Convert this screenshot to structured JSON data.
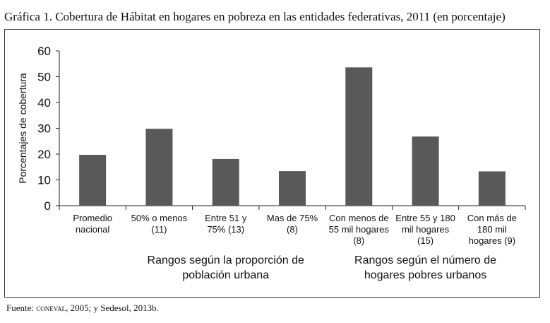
{
  "title": "Gráfica 1. Cobertura de Hábitat en hogares en pobreza en las entidades federativas, 2011 (en porcentaje)",
  "source": {
    "prefix": "Fuente: ",
    "org": "coneval",
    "rest": ", 2005; y Sedesol, 2013b."
  },
  "chart_data": {
    "type": "bar",
    "categories": [
      [
        "Promedio",
        "nacional"
      ],
      [
        "50% o menos",
        "(11)"
      ],
      [
        "Entre 51 y",
        "75% (13)"
      ],
      [
        "Mas de 75%",
        "(8)"
      ],
      [
        "Con menos de",
        "55 mil hogares",
        "(8)"
      ],
      [
        "Entre 55 y 180",
        "mil hogares",
        "(15)"
      ],
      [
        "Con más de",
        "180 mil",
        "hogares (9)"
      ]
    ],
    "values": [
      19.7,
      29.8,
      18.1,
      13.4,
      53.6,
      26.8,
      13.3
    ],
    "ylabel": "Porcentajes de cobertura",
    "ylim": [
      0,
      60
    ],
    "yticks": [
      0,
      10,
      20,
      30,
      40,
      50,
      60
    ],
    "bar_color": "#595959",
    "group_labels": [
      {
        "lines": [
          "Rangos según la proporción de",
          "población urbana"
        ],
        "span": [
          1,
          3
        ]
      },
      {
        "lines": [
          "Rangos según el número de",
          "hogares pobres urbanos"
        ],
        "span": [
          4,
          6
        ]
      }
    ],
    "grid": false,
    "legend": "none"
  }
}
